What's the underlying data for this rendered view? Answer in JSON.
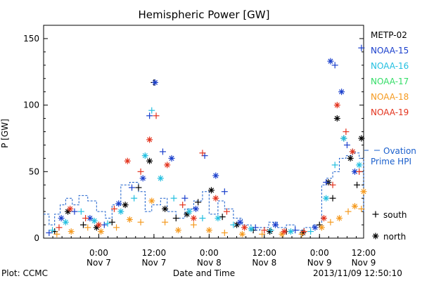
{
  "chart_data": {
    "type": "scatter",
    "title": "Hemispheric Power [GW]",
    "ylabel": "P [GW]",
    "xlabel": "Date and Time",
    "ylim": [
      0,
      160
    ],
    "yticks": [
      0,
      50,
      100,
      150
    ],
    "xlim": [
      0,
      2.9
    ],
    "xticks": [
      {
        "x": 0.5,
        "label1": "0:00",
        "label2": "Nov 7"
      },
      {
        "x": 1.0,
        "label1": "12:00",
        "label2": "Nov 7"
      },
      {
        "x": 1.5,
        "label1": "0:00",
        "label2": "Nov 8"
      },
      {
        "x": 2.0,
        "label1": "12:00",
        "label2": "Nov 8"
      },
      {
        "x": 2.5,
        "label1": "0:00",
        "label2": "Nov 9"
      },
      {
        "x": 3.0,
        "label1": "12:00",
        "label2": "Nov 9"
      }
    ],
    "grid": false,
    "legend_position": "right",
    "series": [
      {
        "name": "METP-02",
        "color": "#000000",
        "points": [
          [
            0.1,
            5
          ],
          [
            0.22,
            20
          ],
          [
            0.36,
            10
          ],
          [
            0.48,
            8
          ],
          [
            0.62,
            12
          ],
          [
            0.74,
            25
          ],
          [
            0.86,
            38
          ],
          [
            0.96,
            58
          ],
          [
            1.0,
            117
          ],
          [
            1.1,
            22
          ],
          [
            1.2,
            15
          ],
          [
            1.3,
            18
          ],
          [
            1.4,
            27
          ],
          [
            1.52,
            36
          ],
          [
            1.62,
            16
          ],
          [
            1.75,
            10
          ],
          [
            1.9,
            6
          ],
          [
            2.05,
            5
          ],
          [
            2.2,
            5
          ],
          [
            2.35,
            4
          ],
          [
            2.5,
            10
          ],
          [
            2.58,
            42
          ],
          [
            2.62,
            30
          ],
          [
            2.66,
            90
          ],
          [
            2.72,
            75
          ],
          [
            2.78,
            60
          ],
          [
            2.84,
            40
          ],
          [
            2.88,
            75
          ]
        ]
      },
      {
        "name": "NOAA-15",
        "color": "#1a3fcc",
        "points": [
          [
            0.05,
            4
          ],
          [
            0.16,
            15
          ],
          [
            0.28,
            20
          ],
          [
            0.42,
            15
          ],
          [
            0.55,
            10
          ],
          [
            0.68,
            26
          ],
          [
            0.8,
            38
          ],
          [
            0.9,
            45
          ],
          [
            0.96,
            92
          ],
          [
            1.01,
            117
          ],
          [
            1.08,
            65
          ],
          [
            1.16,
            60
          ],
          [
            1.28,
            30
          ],
          [
            1.38,
            22
          ],
          [
            1.46,
            62
          ],
          [
            1.56,
            47
          ],
          [
            1.64,
            35
          ],
          [
            1.78,
            12
          ],
          [
            1.92,
            8
          ],
          [
            2.1,
            10
          ],
          [
            2.28,
            6
          ],
          [
            2.46,
            8
          ],
          [
            2.56,
            42
          ],
          [
            2.6,
            133
          ],
          [
            2.64,
            130
          ],
          [
            2.7,
            110
          ],
          [
            2.75,
            70
          ],
          [
            2.82,
            50
          ],
          [
            2.88,
            143
          ]
        ]
      },
      {
        "name": "NOAA-16",
        "color": "#22bfe0",
        "points": [
          [
            0.08,
            6
          ],
          [
            0.2,
            12
          ],
          [
            0.34,
            20
          ],
          [
            0.46,
            13
          ],
          [
            0.58,
            11
          ],
          [
            0.7,
            20
          ],
          [
            0.82,
            30
          ],
          [
            0.92,
            62
          ],
          [
            0.98,
            96
          ],
          [
            1.06,
            45
          ],
          [
            1.18,
            30
          ],
          [
            1.32,
            20
          ],
          [
            1.44,
            15
          ],
          [
            1.58,
            15
          ],
          [
            1.72,
            10
          ],
          [
            1.88,
            7
          ],
          [
            2.06,
            6
          ],
          [
            2.24,
            5
          ],
          [
            2.42,
            5
          ],
          [
            2.56,
            30
          ],
          [
            2.64,
            55
          ],
          [
            2.72,
            75
          ],
          [
            2.8,
            65
          ],
          [
            2.86,
            55
          ]
        ]
      },
      {
        "name": "NOAA-17",
        "color": "#33dd66",
        "points": []
      },
      {
        "name": "NOAA-18",
        "color": "#f59a1f",
        "points": [
          [
            0.12,
            3
          ],
          [
            0.25,
            5
          ],
          [
            0.4,
            8
          ],
          [
            0.52,
            5
          ],
          [
            0.66,
            8
          ],
          [
            0.78,
            14
          ],
          [
            0.88,
            12
          ],
          [
            0.98,
            28
          ],
          [
            1.1,
            12
          ],
          [
            1.22,
            6
          ],
          [
            1.36,
            10
          ],
          [
            1.5,
            6
          ],
          [
            1.64,
            4
          ],
          [
            1.8,
            3
          ],
          [
            1.98,
            3
          ],
          [
            2.16,
            3
          ],
          [
            2.34,
            3
          ],
          [
            2.52,
            8
          ],
          [
            2.6,
            12
          ],
          [
            2.68,
            15
          ],
          [
            2.76,
            20
          ],
          [
            2.82,
            24
          ],
          [
            2.88,
            22
          ],
          [
            2.9,
            35
          ]
        ]
      },
      {
        "name": "NOAA-19",
        "color": "#e3321c",
        "points": [
          [
            0.14,
            8
          ],
          [
            0.24,
            22
          ],
          [
            0.38,
            15
          ],
          [
            0.5,
            10
          ],
          [
            0.64,
            22
          ],
          [
            0.76,
            58
          ],
          [
            0.88,
            50
          ],
          [
            0.96,
            74
          ],
          [
            1.02,
            92
          ],
          [
            1.12,
            55
          ],
          [
            1.26,
            25
          ],
          [
            1.36,
            15
          ],
          [
            1.44,
            64
          ],
          [
            1.56,
            30
          ],
          [
            1.66,
            20
          ],
          [
            1.82,
            8
          ],
          [
            2.0,
            6
          ],
          [
            2.18,
            5
          ],
          [
            2.36,
            5
          ],
          [
            2.54,
            15
          ],
          [
            2.62,
            40
          ],
          [
            2.66,
            100
          ],
          [
            2.74,
            80
          ],
          [
            2.8,
            65
          ],
          [
            2.86,
            50
          ]
        ]
      }
    ],
    "ovation": {
      "name_line1": "Ovation",
      "name_line2": "Prime HPI",
      "color": "#1a5fcc",
      "steps": [
        [
          0.0,
          18
        ],
        [
          0.05,
          10
        ],
        [
          0.1,
          18
        ],
        [
          0.15,
          25
        ],
        [
          0.2,
          30
        ],
        [
          0.26,
          25
        ],
        [
          0.32,
          32
        ],
        [
          0.4,
          28
        ],
        [
          0.48,
          20
        ],
        [
          0.56,
          15
        ],
        [
          0.62,
          25
        ],
        [
          0.7,
          40
        ],
        [
          0.78,
          42
        ],
        [
          0.86,
          35
        ],
        [
          0.92,
          20
        ],
        [
          0.98,
          25
        ],
        [
          1.06,
          30
        ],
        [
          1.12,
          20
        ],
        [
          1.2,
          15
        ],
        [
          1.28,
          22
        ],
        [
          1.36,
          28
        ],
        [
          1.44,
          35
        ],
        [
          1.5,
          18
        ],
        [
          1.58,
          28
        ],
        [
          1.64,
          22
        ],
        [
          1.72,
          15
        ],
        [
          1.8,
          10
        ],
        [
          1.88,
          6
        ],
        [
          1.96,
          8
        ],
        [
          2.04,
          12
        ],
        [
          2.12,
          8
        ],
        [
          2.2,
          10
        ],
        [
          2.28,
          6
        ],
        [
          2.36,
          8
        ],
        [
          2.44,
          10
        ],
        [
          2.52,
          40
        ],
        [
          2.56,
          45
        ],
        [
          2.62,
          50
        ],
        [
          2.68,
          60
        ],
        [
          2.74,
          62
        ],
        [
          2.8,
          64
        ],
        [
          2.86,
          60
        ],
        [
          2.9,
          20
        ]
      ]
    },
    "symbol_legend": {
      "south": "south",
      "north": "north"
    }
  },
  "footer": {
    "left": "Plot: CCMC",
    "right": "2013/11/09 12:50:10"
  }
}
